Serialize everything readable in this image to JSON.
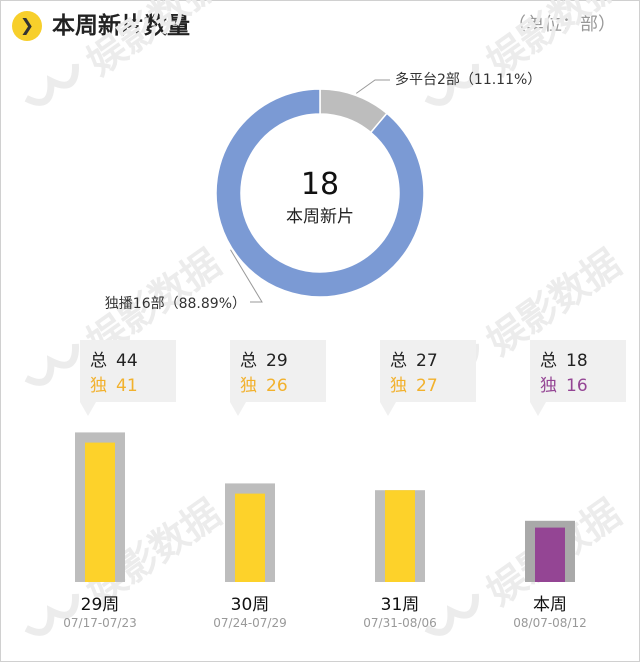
{
  "header": {
    "title": "本周新片数量",
    "unit_label": "（单位：部）"
  },
  "watermark": "娱影数据",
  "colors": {
    "accent": "#f7cf2b",
    "donut_main": "#7b9ad4",
    "donut_minor": "#bdbdbd",
    "bar_yellow": "#fdd22a",
    "bar_purple": "#944594",
    "bar_frame": "#bdbdbd",
    "bar_frame_current": "#a9a9a9",
    "label_gold": "#f2b12c",
    "label_purple": "#944594"
  },
  "chart_data": [
    {
      "type": "pie",
      "center_value": "18",
      "center_label": "本周新片",
      "slices": [
        {
          "name": "多平台",
          "value": 2,
          "label": "多平台2部（11.11%）",
          "color": "#bdbdbd"
        },
        {
          "name": "独播",
          "value": 16,
          "label": "独播16部（88.89%）",
          "color": "#7b9ad4"
        }
      ]
    },
    {
      "type": "bar",
      "categories": [
        "29周",
        "30周",
        "31周",
        "本周"
      ],
      "date_ranges": [
        "07/17-07/23",
        "07/24-07/29",
        "07/31-08/06",
        "08/07-08/12"
      ],
      "total_prefix": "总",
      "exclusive_prefix": "独",
      "series": [
        {
          "name": "总",
          "values": [
            44,
            29,
            27,
            18
          ]
        },
        {
          "name": "独",
          "values": [
            41,
            26,
            27,
            16
          ]
        }
      ],
      "current_index": 3
    }
  ]
}
